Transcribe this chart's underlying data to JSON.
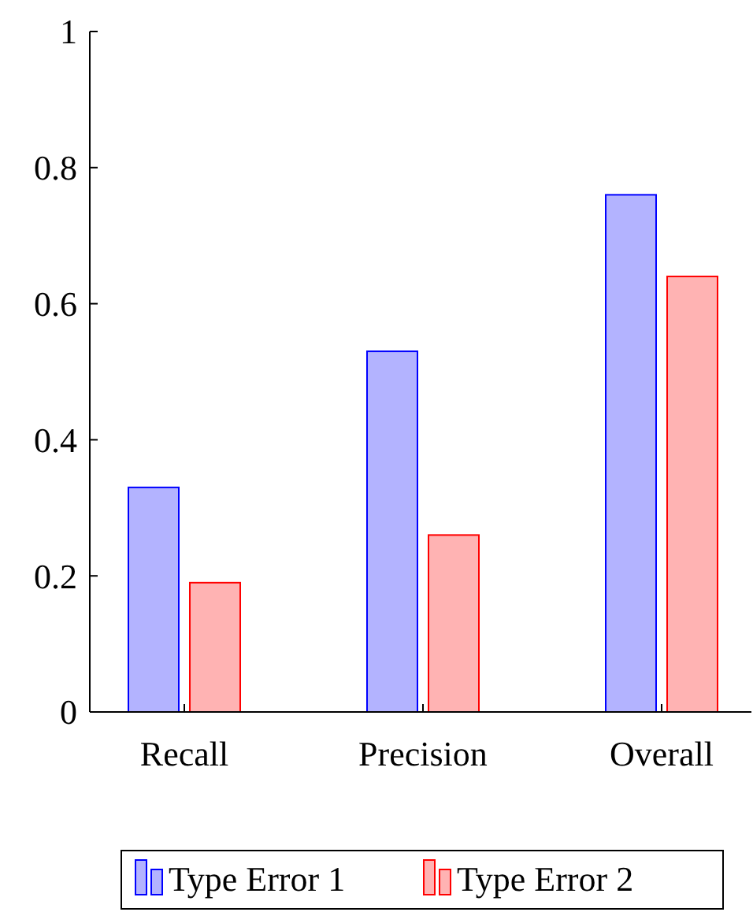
{
  "chart_data": {
    "type": "bar",
    "categories": [
      "Recall",
      "Precision",
      "Overall"
    ],
    "series": [
      {
        "name": "Type Error 1",
        "color": "#b3b3ff",
        "values": [
          0.33,
          0.53,
          0.76
        ]
      },
      {
        "name": "Type Error 2",
        "color": "#ffb3b3",
        "values": [
          0.19,
          0.26,
          0.64
        ]
      }
    ],
    "ylim": [
      0,
      1
    ],
    "yticks": [
      0,
      0.2,
      0.4,
      0.6,
      0.8,
      1
    ],
    "grid": false,
    "legend": "bottom"
  }
}
